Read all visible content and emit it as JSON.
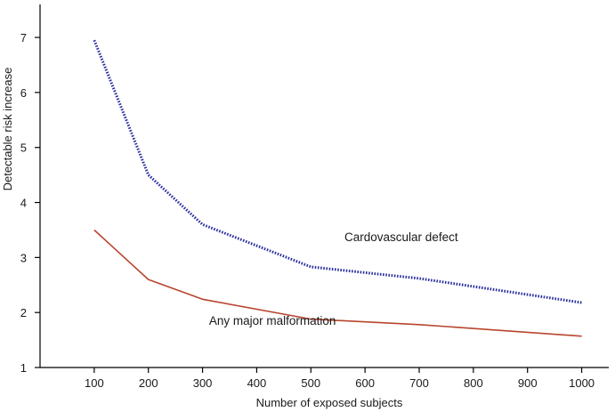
{
  "chart_data": {
    "type": "line",
    "title": "",
    "xlabel": "Number of exposed subjects",
    "ylabel": "Detectable risk increase",
    "xlim": [
      0,
      1050
    ],
    "ylim": [
      1,
      7.6
    ],
    "x_ticks": [
      100,
      200,
      300,
      400,
      500,
      600,
      700,
      800,
      900,
      1000
    ],
    "y_ticks": [
      1,
      2,
      3,
      4,
      5,
      6,
      7
    ],
    "grid": false,
    "series": [
      {
        "name": "Cardovascular defect",
        "color": "#2b2f9e",
        "style": "dotted",
        "points": [
          [
            100,
            6.95
          ],
          [
            200,
            4.5
          ],
          [
            300,
            3.6
          ],
          [
            500,
            2.83
          ],
          [
            700,
            2.62
          ],
          [
            1000,
            2.18
          ]
        ]
      },
      {
        "name": "Any major malformation",
        "color": "#b8452f",
        "style": "solid",
        "points": [
          [
            100,
            3.5
          ],
          [
            200,
            2.6
          ],
          [
            300,
            2.24
          ],
          [
            500,
            1.88
          ],
          [
            700,
            1.78
          ],
          [
            1000,
            1.57
          ]
        ]
      }
    ],
    "annotations": [
      {
        "text": "Cardovascular defect",
        "series": "Cardovascular defect",
        "anchor": [
          562,
          3.3
        ]
      },
      {
        "text": "Any major malformation",
        "series": "Any major malformation",
        "anchor": [
          312,
          1.78
        ]
      }
    ]
  }
}
